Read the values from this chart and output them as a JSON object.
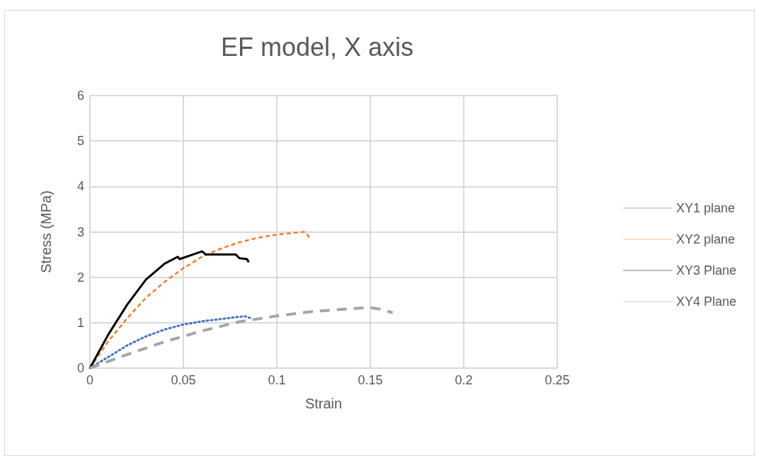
{
  "chart_data": {
    "type": "line",
    "title": "EF model, X axis",
    "xlabel": "Strain",
    "ylabel": "Stress (MPa)",
    "xlim": [
      0,
      0.25
    ],
    "xticks": [
      0,
      0.05,
      0.1,
      0.15,
      0.2,
      0.25
    ],
    "ylim": [
      0,
      6
    ],
    "yticks": [
      0,
      1,
      2,
      3,
      4,
      5,
      6
    ],
    "grid": true,
    "legend": "right",
    "marker": "none",
    "series": [
      {
        "name": "XY1 plane",
        "color": "#4472c4",
        "line_style": "dotted",
        "x": [
          0,
          0.01,
          0.02,
          0.03,
          0.04,
          0.05,
          0.06,
          0.07,
          0.08,
          0.083,
          0.086
        ],
        "values": [
          0,
          0.25,
          0.5,
          0.7,
          0.85,
          0.96,
          1.03,
          1.08,
          1.13,
          1.14,
          1.1
        ]
      },
      {
        "name": "XY2 plane",
        "color": "#ed7d31",
        "line_style": "dashed",
        "x": [
          0,
          0.01,
          0.02,
          0.03,
          0.04,
          0.05,
          0.06,
          0.07,
          0.08,
          0.09,
          0.1,
          0.11,
          0.115,
          0.118
        ],
        "values": [
          0,
          0.6,
          1.1,
          1.55,
          1.9,
          2.2,
          2.45,
          2.63,
          2.77,
          2.87,
          2.94,
          2.98,
          3.0,
          2.85
        ]
      },
      {
        "name": "XY3 Plane",
        "color": "#000000",
        "line_style": "solid",
        "x": [
          0,
          0.01,
          0.02,
          0.03,
          0.04,
          0.047,
          0.048,
          0.055,
          0.06,
          0.062,
          0.07,
          0.078,
          0.08,
          0.084,
          0.085
        ],
        "values": [
          0,
          0.75,
          1.4,
          1.95,
          2.3,
          2.45,
          2.4,
          2.5,
          2.57,
          2.5,
          2.5,
          2.5,
          2.42,
          2.4,
          2.33
        ]
      },
      {
        "name": "XY4 Plane",
        "color": "#a5a5a5",
        "line_style": "dashed",
        "x": [
          0,
          0.02,
          0.04,
          0.06,
          0.08,
          0.1,
          0.12,
          0.14,
          0.15,
          0.155,
          0.162
        ],
        "values": [
          0,
          0.3,
          0.58,
          0.82,
          1.02,
          1.15,
          1.25,
          1.31,
          1.33,
          1.3,
          1.22
        ]
      }
    ]
  }
}
